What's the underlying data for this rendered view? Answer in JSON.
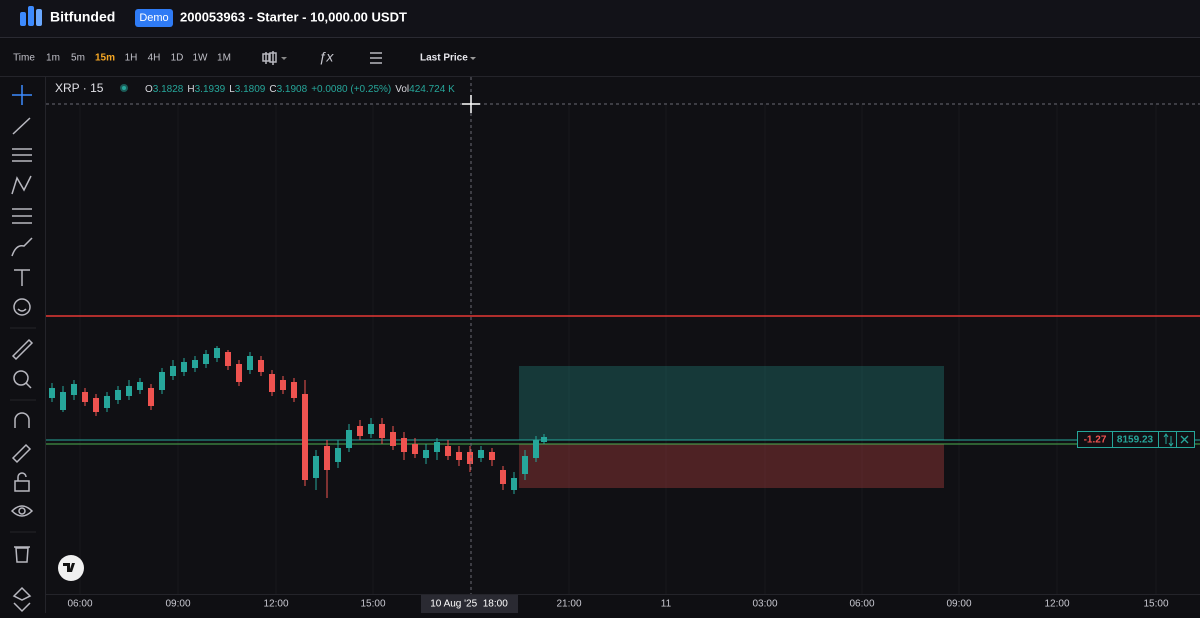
{
  "header": {
    "brand": "Bitfunded",
    "badge": "Demo",
    "account": "200053963 - Starter - 10,000.00 USDT"
  },
  "toolbar": {
    "intervals": [
      "Time",
      "1m",
      "5m",
      "15m",
      "1H",
      "4H",
      "1D",
      "1W",
      "1M"
    ],
    "active_interval": "15m",
    "price_type": "Last Price"
  },
  "legend": {
    "symbol": "XRP · 15",
    "open_label": "O",
    "open": "3.1828",
    "high_label": "H",
    "high": "3.1939",
    "low_label": "L",
    "low": "3.1809",
    "close_label": "C",
    "close": "3.1908",
    "change": "+0.0080 (+0.25%)",
    "volume_label": "Vol",
    "volume": "424.724 K"
  },
  "position": {
    "pnl": "-1.27",
    "quantity": "8159.23"
  },
  "crosshair_label": "10 Aug '25  18:00",
  "time_axis": [
    "06:00",
    "09:00",
    "12:00",
    "15:00",
    "21:00",
    "11",
    "03:00",
    "06:00",
    "09:00",
    "12:00",
    "15:00"
  ]
}
